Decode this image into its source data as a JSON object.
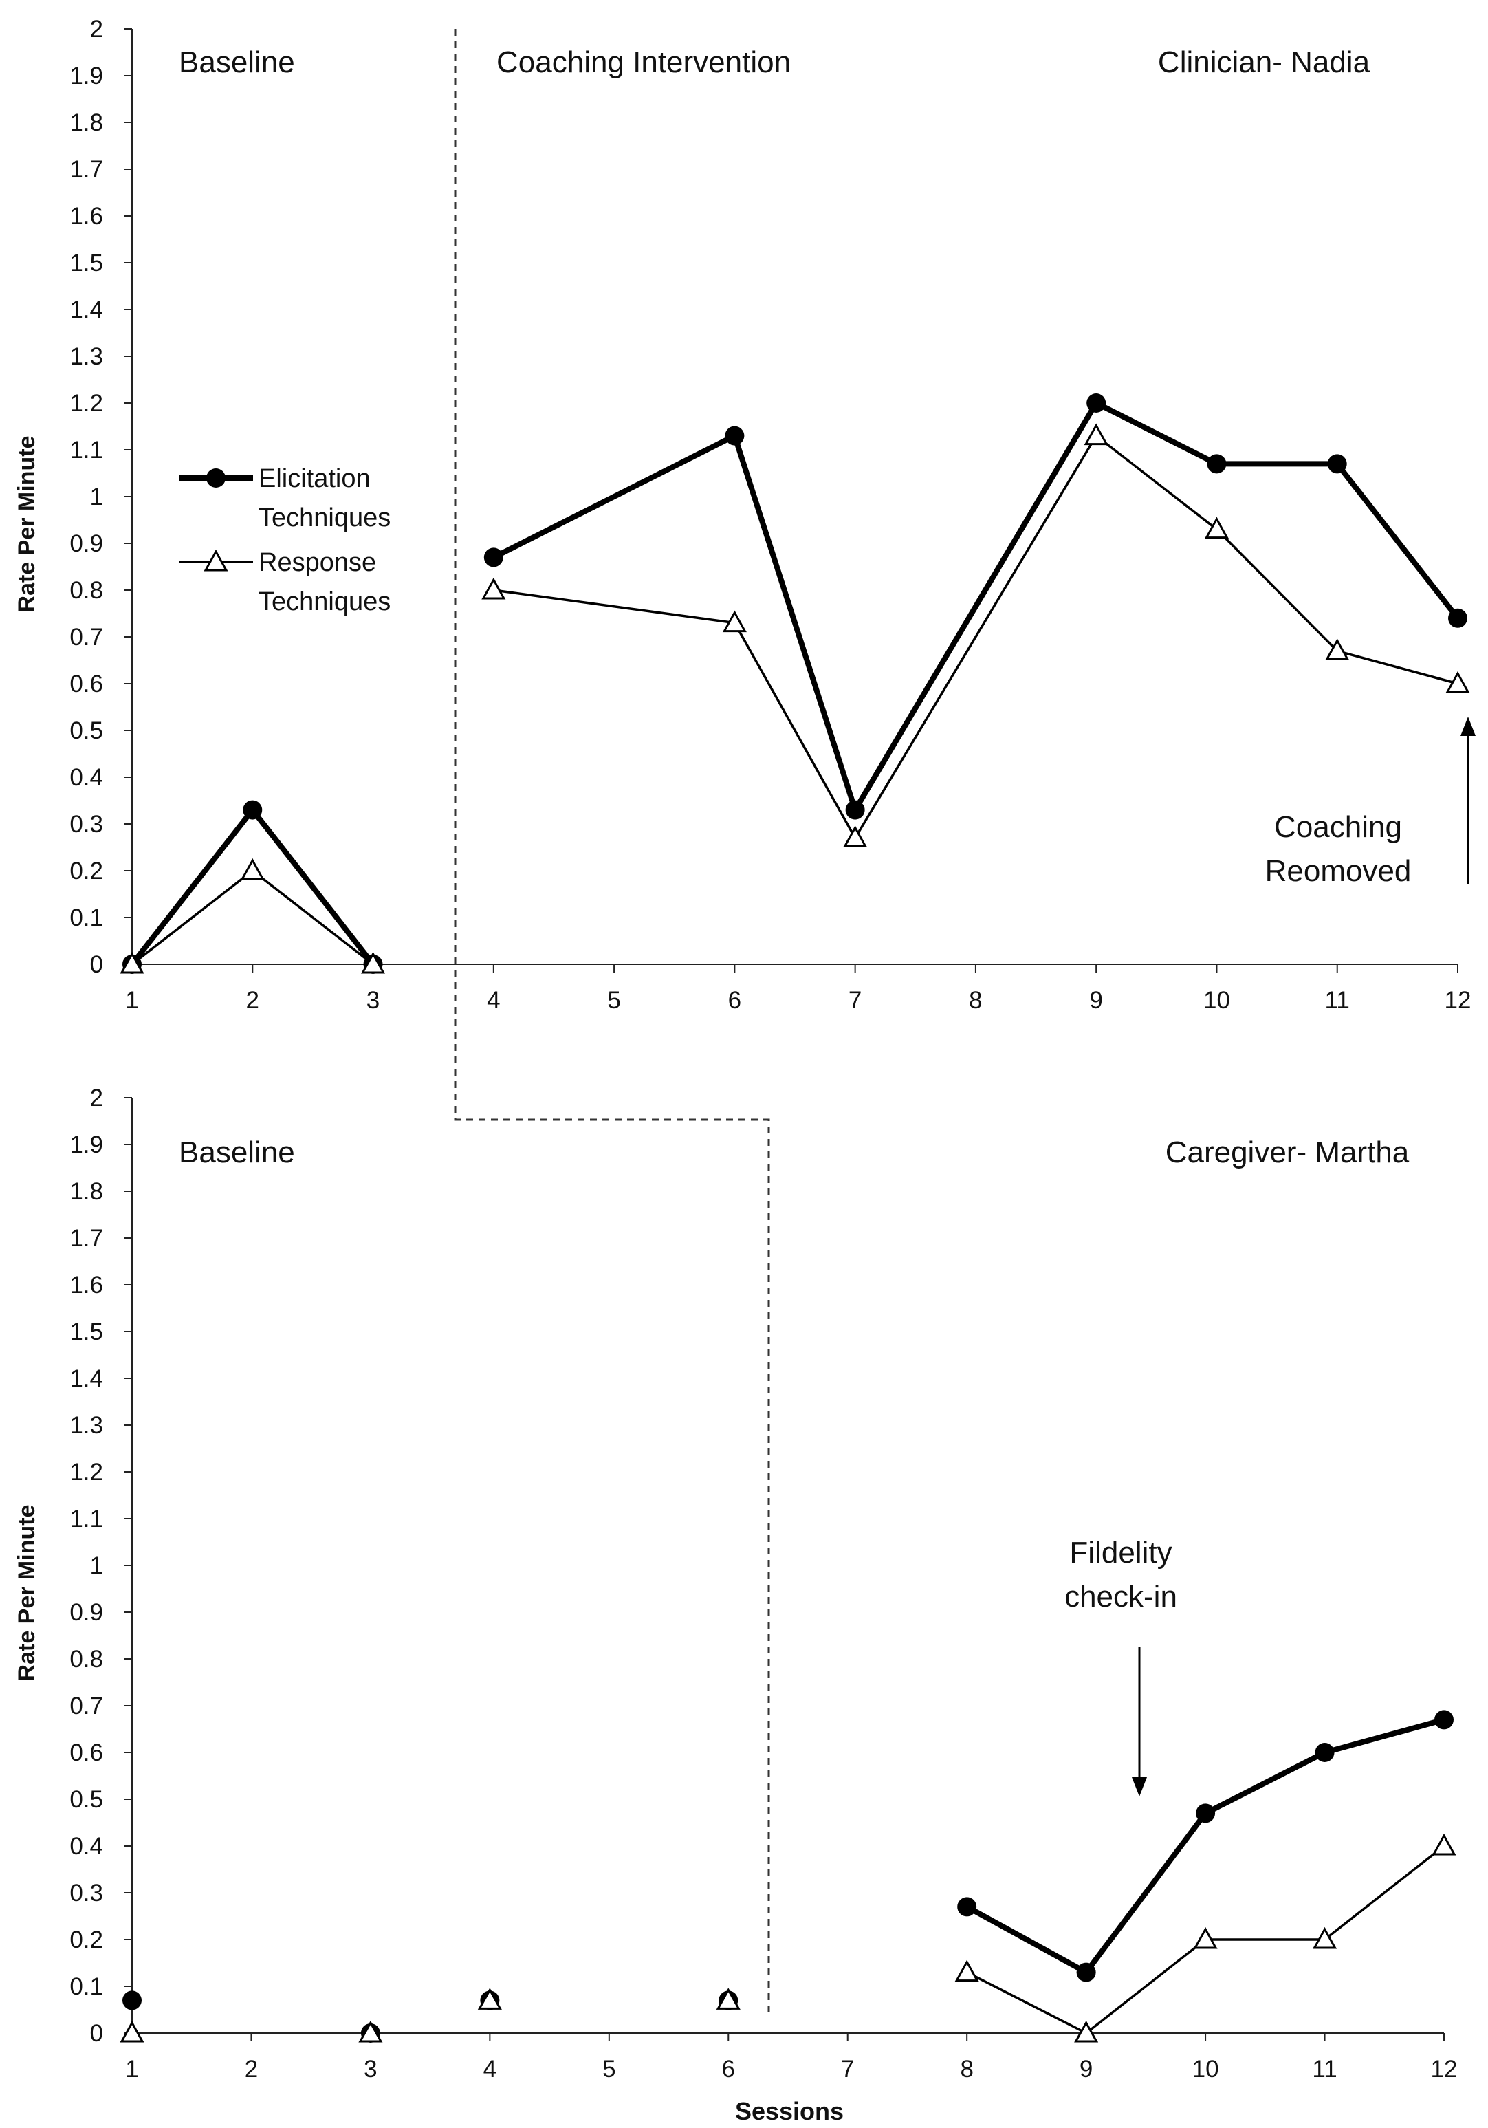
{
  "chart_data": [
    {
      "type": "line",
      "panel": "top",
      "title": "",
      "participant_label": "Clinician- Nadia",
      "phase_labels": [
        "Baseline",
        "Coaching Intervention"
      ],
      "ylabel": "Rate Per Minute",
      "xlabel": "",
      "ylim": [
        0,
        2
      ],
      "ytick_step": 0.1,
      "x_categories": [
        "1",
        "2",
        "3",
        "4",
        "5",
        "6",
        "7",
        "8",
        "9",
        "10",
        "11",
        "12"
      ],
      "grid": false,
      "legend": {
        "placement": "left-middle",
        "entries": [
          {
            "line1": "Elicitation",
            "line2": "Techniques",
            "series": "Elicitation Techniques"
          },
          {
            "line1": "Response",
            "line2": "Techniques",
            "series": "Response Techniques"
          }
        ]
      },
      "series": [
        {
          "name": "Elicitation Techniques",
          "marker": "filled-circle",
          "segments": [
            [
              [
                1,
                0
              ],
              [
                2,
                0.33
              ],
              [
                3,
                0
              ]
            ],
            [
              [
                4,
                0.87
              ],
              [
                6,
                1.13
              ],
              [
                7,
                0.33
              ],
              [
                9,
                1.2
              ],
              [
                10,
                1.07
              ],
              [
                11,
                1.07
              ],
              [
                12,
                0.74
              ]
            ]
          ]
        },
        {
          "name": "Response Techniques",
          "marker": "open-triangle",
          "segments": [
            [
              [
                1,
                0
              ],
              [
                2,
                0.2
              ],
              [
                3,
                0
              ]
            ],
            [
              [
                4,
                0.8
              ],
              [
                6,
                0.73
              ],
              [
                7,
                0.27
              ],
              [
                9,
                1.13
              ],
              [
                10,
                0.93
              ],
              [
                11,
                0.67
              ],
              [
                12,
                0.6
              ]
            ]
          ]
        }
      ],
      "annotations": [
        {
          "line1": "Coaching",
          "line2": "Reomoved",
          "points_to_session": 12
        }
      ]
    },
    {
      "type": "line",
      "panel": "bottom",
      "title": "",
      "participant_label": "Caregiver- Martha",
      "phase_labels": [
        "Baseline"
      ],
      "ylabel": "Rate Per Minute",
      "xlabel": "Sessions",
      "ylim": [
        0,
        2
      ],
      "ytick_step": 0.1,
      "x_categories": [
        "1",
        "2",
        "3",
        "4",
        "5",
        "6",
        "7",
        "8",
        "9",
        "10",
        "11",
        "12"
      ],
      "grid": false,
      "series": [
        {
          "name": "Elicitation Techniques",
          "marker": "filled-circle",
          "segments": [
            [
              [
                1,
                0.07
              ]
            ],
            [
              [
                3,
                0
              ]
            ],
            [
              [
                4,
                0.07
              ]
            ],
            [
              [
                6,
                0.07
              ]
            ],
            [
              [
                8,
                0.27
              ],
              [
                9,
                0.13
              ],
              [
                10,
                0.47
              ],
              [
                11,
                0.6
              ],
              [
                12,
                0.67
              ]
            ]
          ]
        },
        {
          "name": "Response Techniques",
          "marker": "open-triangle",
          "segments": [
            [
              [
                1,
                0
              ]
            ],
            [
              [
                3,
                0
              ]
            ],
            [
              [
                4,
                0.07
              ]
            ],
            [
              [
                6,
                0.07
              ]
            ],
            [
              [
                8,
                0.13
              ],
              [
                9,
                0
              ],
              [
                10,
                0.2
              ],
              [
                11,
                0.2
              ],
              [
                12,
                0.4
              ]
            ]
          ]
        }
      ],
      "annotations": [
        {
          "line1": "Fildelity",
          "line2": "check-in",
          "points_to_session": 9.4
        }
      ]
    }
  ],
  "colors": {
    "line": "#000000",
    "marker_fill_open": "#ffffff",
    "axis": "#222222",
    "phase_line": "#333333"
  }
}
